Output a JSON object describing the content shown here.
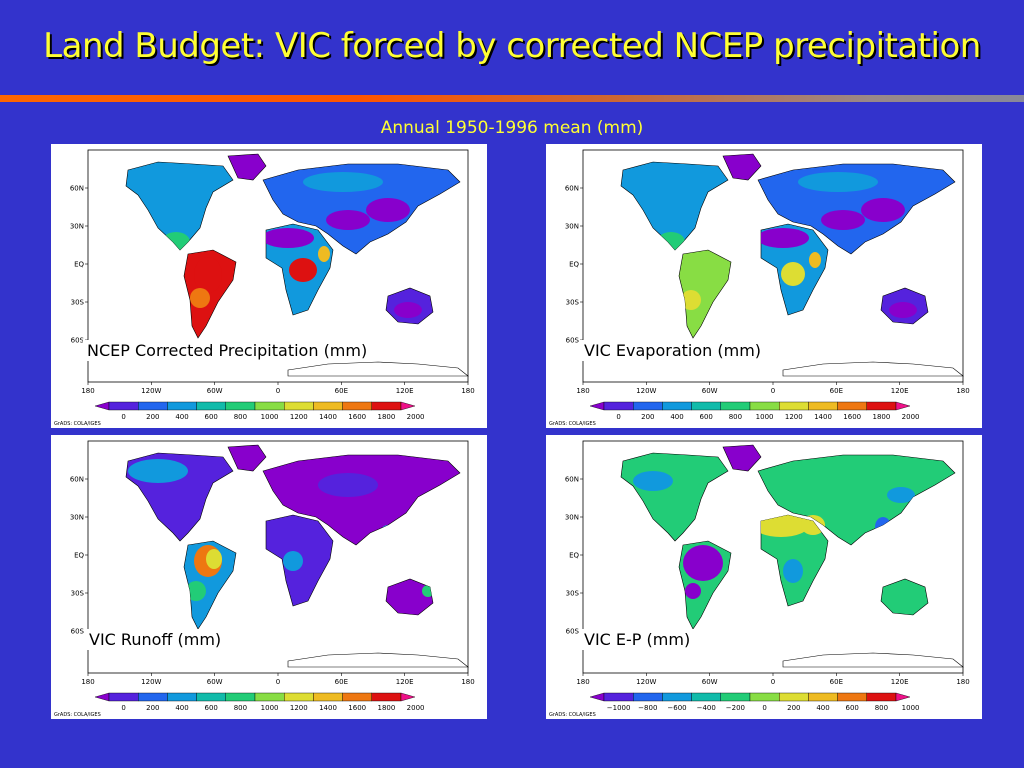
{
  "slide": {
    "title": "Land Budget: VIC forced by corrected NCEP precipitation",
    "subtitle": "Annual 1950-1996 mean (mm)"
  },
  "axes": {
    "lat_ticks": [
      "60N",
      "30N",
      "EQ",
      "30S",
      "60S"
    ],
    "lon_ticks": [
      "180",
      "120W",
      "60W",
      "0",
      "60E",
      "120E",
      "180"
    ]
  },
  "credit": "GrADS: COLA/IGES",
  "panels": [
    {
      "id": "precip",
      "label": "NCEP Corrected Precipitation (mm)",
      "colorbar_labels": [
        "0",
        "200",
        "400",
        "600",
        "800",
        "1000",
        "1200",
        "1400",
        "1600",
        "1800",
        "2000"
      ]
    },
    {
      "id": "evap",
      "label": "VIC Evaporation (mm)",
      "colorbar_labels": [
        "0",
        "200",
        "400",
        "600",
        "800",
        "1000",
        "1200",
        "1400",
        "1600",
        "1800",
        "2000"
      ]
    },
    {
      "id": "runoff",
      "label": "VIC Runoff (mm)",
      "colorbar_labels": [
        "0",
        "200",
        "400",
        "600",
        "800",
        "1000",
        "1200",
        "1400",
        "1600",
        "1800",
        "2000"
      ]
    },
    {
      "id": "ep",
      "label": "VIC E-P (mm)",
      "colorbar_labels": [
        "−1000",
        "−800",
        "−600",
        "−400",
        "−200",
        "0",
        "200",
        "400",
        "600",
        "800",
        "1000"
      ]
    }
  ],
  "colors": {
    "background": "#3333cc",
    "title": "#ffff33",
    "colorbar": [
      "#8800cc",
      "#5522dd",
      "#2266ee",
      "#1199dd",
      "#11bbaa",
      "#22cc77",
      "#88dd44",
      "#dddd33",
      "#eebb22",
      "#ee7711",
      "#dd1111",
      "#ee1188"
    ]
  }
}
